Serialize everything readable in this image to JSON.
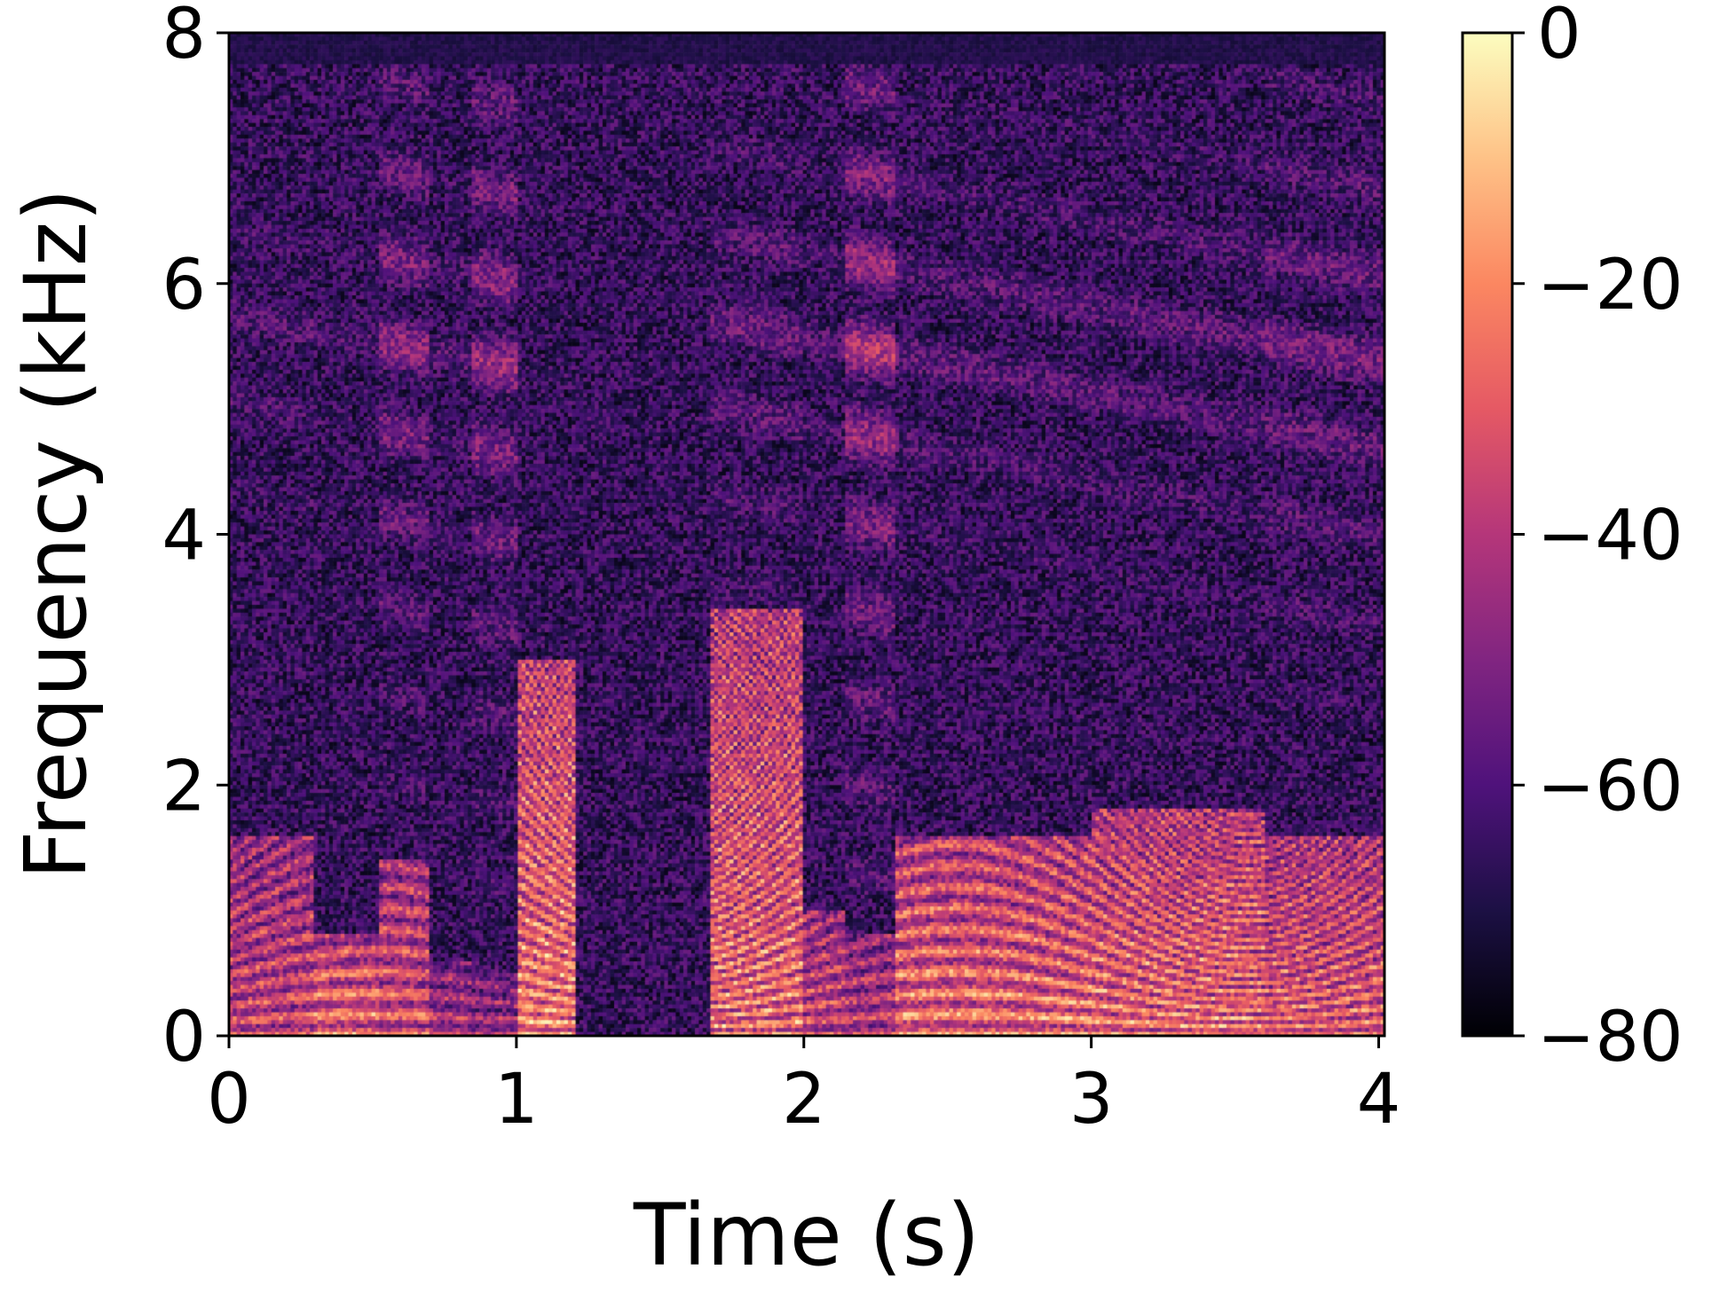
{
  "chart_data": {
    "type": "heatmap",
    "subtype": "spectrogram",
    "title": "",
    "xlabel": "Time (s)",
    "ylabel": "Frequency (kHz)",
    "xlim": [
      0,
      4.02
    ],
    "ylim": [
      0,
      8
    ],
    "x_ticks": [
      0,
      1,
      2,
      3,
      4
    ],
    "y_ticks": [
      0,
      2,
      4,
      6,
      8
    ],
    "colorbar": {
      "colormap": "magma",
      "range": [
        -80,
        0
      ],
      "ticks": [
        0,
        -20,
        -40,
        -60,
        -80
      ],
      "tick_labels": [
        "0",
        "−20",
        "−40",
        "−60",
        "−80"
      ],
      "stops": [
        "#000004",
        "#1c1044",
        "#4f127b",
        "#812581",
        "#b5367a",
        "#e55964",
        "#fb8761",
        "#fec287",
        "#fcfdbf"
      ]
    },
    "segments": [
      {
        "t0": 0.0,
        "t1": 0.3,
        "level": 0.7,
        "fmax": 1.6,
        "hf": 0.45
      },
      {
        "t0": 0.3,
        "t1": 0.52,
        "level": 0.85,
        "fmax": 0.8,
        "hf": 0.4
      },
      {
        "t0": 0.52,
        "t1": 0.7,
        "level": 0.75,
        "fmax": 1.4,
        "hf": 0.7
      },
      {
        "t0": 0.7,
        "t1": 0.85,
        "level": 0.6,
        "fmax": 0.6,
        "hf": 0.45
      },
      {
        "t0": 0.85,
        "t1": 1.0,
        "level": 0.55,
        "fmax": 0.5,
        "hf": 0.75
      },
      {
        "t0": 1.0,
        "t1": 1.2,
        "level": 0.9,
        "fmax": 3.0,
        "hf": 0.35
      },
      {
        "t0": 1.2,
        "t1": 1.68,
        "level": 0.2,
        "fmax": 0.3,
        "hf": 0.1
      },
      {
        "t0": 1.68,
        "t1": 2.0,
        "level": 0.85,
        "fmax": 3.4,
        "hf": 0.55
      },
      {
        "t0": 2.0,
        "t1": 2.15,
        "level": 0.7,
        "fmax": 1.0,
        "hf": 0.45
      },
      {
        "t0": 2.15,
        "t1": 2.32,
        "level": 0.65,
        "fmax": 0.8,
        "hf": 0.85
      },
      {
        "t0": 2.32,
        "t1": 3.0,
        "level": 0.85,
        "fmax": 1.6,
        "hf": 0.5
      },
      {
        "t0": 3.0,
        "t1": 3.6,
        "level": 0.85,
        "fmax": 1.8,
        "hf": 0.5
      },
      {
        "t0": 3.6,
        "t1": 4.02,
        "level": 0.8,
        "fmax": 1.6,
        "hf": 0.6
      }
    ]
  }
}
